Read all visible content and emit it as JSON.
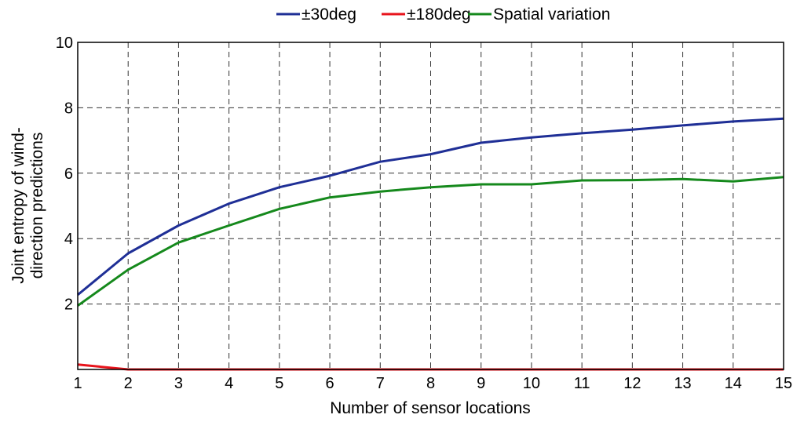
{
  "chart_data": {
    "type": "line",
    "xlabel": "Number of sensor locations",
    "ylabel_lines": [
      "Joint entropy of wind-",
      "direction predictions"
    ],
    "x": [
      1,
      2,
      3,
      4,
      5,
      6,
      7,
      8,
      9,
      10,
      11,
      12,
      13,
      14,
      15
    ],
    "xlim": [
      1,
      15
    ],
    "ylim": [
      0,
      10
    ],
    "xticks": [
      1,
      2,
      3,
      4,
      5,
      6,
      7,
      8,
      9,
      10,
      11,
      12,
      13,
      14,
      15
    ],
    "yticks": [
      2,
      4,
      6,
      8,
      10
    ],
    "grid": true,
    "legend_position": "top-center",
    "series": [
      {
        "name": "±30deg",
        "color": "#1f2f96",
        "values": [
          2.28,
          3.55,
          4.4,
          5.07,
          5.57,
          5.92,
          6.35,
          6.58,
          6.93,
          7.09,
          7.22,
          7.33,
          7.46,
          7.58,
          7.67
        ]
      },
      {
        "name": "±180deg",
        "color": "#e8141c",
        "values": [
          0.15,
          0.0,
          0.0,
          0.0,
          0.0,
          0.0,
          0.0,
          0.0,
          0.0,
          0.0,
          0.0,
          0.0,
          0.0,
          0.0,
          0.0
        ]
      },
      {
        "name": "Spatial variation",
        "color": "#15891c",
        "values": [
          1.95,
          3.05,
          3.88,
          4.4,
          4.91,
          5.26,
          5.44,
          5.57,
          5.66,
          5.66,
          5.78,
          5.79,
          5.82,
          5.75,
          5.88
        ]
      }
    ]
  }
}
